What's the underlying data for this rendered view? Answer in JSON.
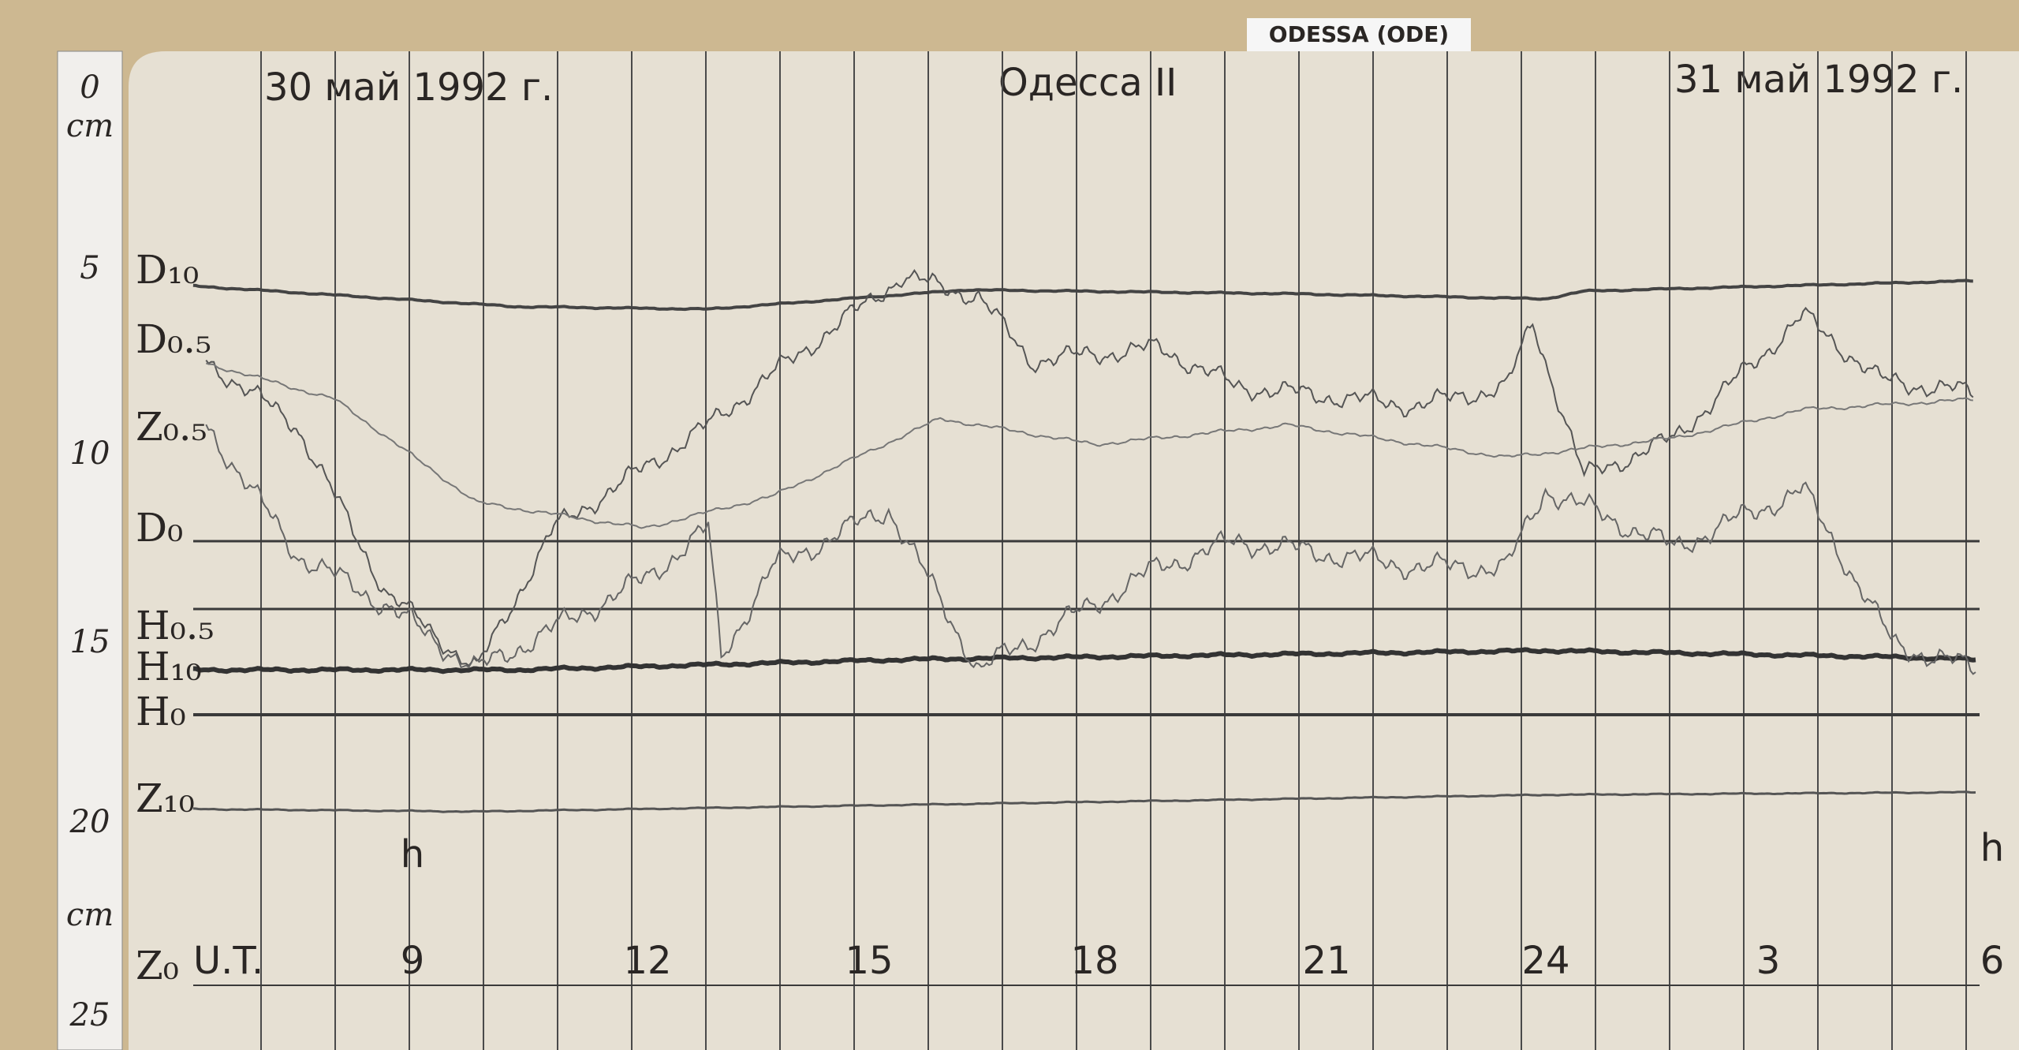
{
  "tag": "ODESSA (ODE)",
  "header": {
    "date_left": "30 май 1992 г.",
    "station": "Одесса II",
    "date_right": "31 май 1992 г."
  },
  "ruler": [
    "0",
    "cm",
    "5",
    "10",
    "15",
    "20",
    "cm",
    "25"
  ],
  "traces": [
    "D₁₀",
    "D₀.₅",
    "Z₀.₅",
    "D₀",
    "H₀.₅",
    "H₁₀",
    "H₀",
    "Z₁₀",
    "Z₀"
  ],
  "time_axis": {
    "unit_label": "U.T.",
    "hours": [
      "9",
      "12",
      "15",
      "18",
      "21",
      "24",
      "3",
      "6"
    ],
    "hour_marks": [
      "h",
      "h"
    ]
  }
}
